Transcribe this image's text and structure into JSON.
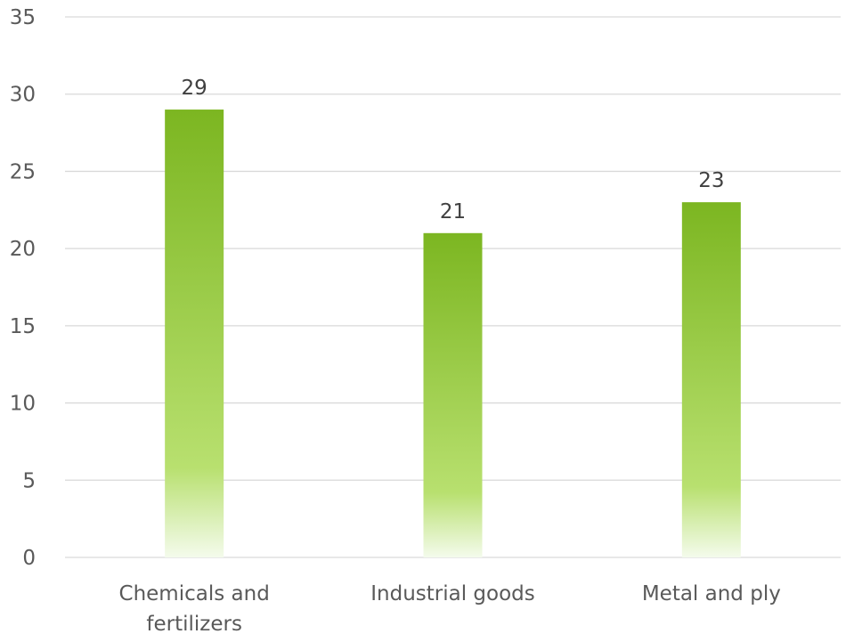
{
  "chart_data": {
    "type": "bar",
    "categories": [
      "Chemicals and fertilizers",
      "Industrial goods",
      "Metal and ply"
    ],
    "category_lines": [
      [
        "Chemicals and",
        "fertilizers"
      ],
      [
        "Industrial goods"
      ],
      [
        "Metal and ply"
      ]
    ],
    "values": [
      29,
      21,
      23
    ],
    "ylim": [
      0,
      35
    ],
    "yticks": [
      0,
      5,
      10,
      15,
      20,
      25,
      30,
      35
    ],
    "grid": true,
    "data_labels": true,
    "bar_color_top": "#7cb621",
    "bar_color_bottom": "#f4fbec"
  }
}
